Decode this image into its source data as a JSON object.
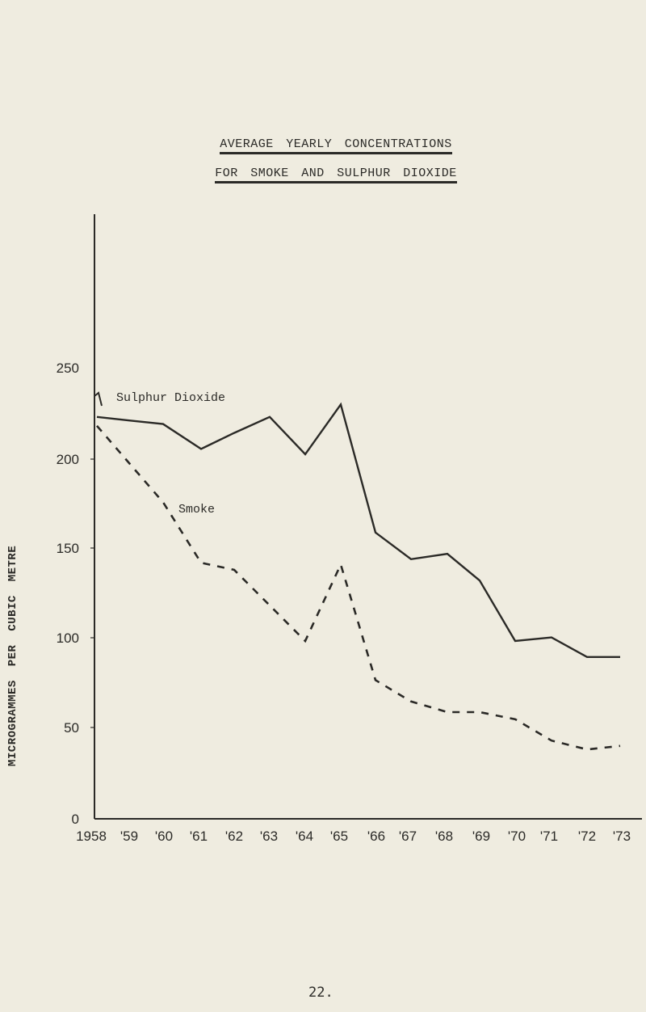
{
  "page": {
    "title_line1": "AVERAGE YEARLY CONCENTRATIONS",
    "title_line2": "FOR SMOKE AND SULPHUR DIOXIDE",
    "y_axis_label": "MICROGRAMMES PER CUBIC METRE",
    "page_number": "22."
  },
  "chart_data": {
    "type": "line",
    "title": "AVERAGE YEARLY CONCENTRATIONS FOR SMOKE AND SULPHUR DIOXIDE",
    "xlabel": "",
    "ylabel": "MICROGRAMMES PER CUBIC METRE",
    "x": [
      "1958",
      "'59",
      "'60",
      "'61",
      "'62",
      "'63",
      "'64",
      "'65",
      "'66",
      "'67",
      "'68",
      "'69",
      "'70",
      "'71",
      "'72",
      "'73"
    ],
    "yticks": [
      0,
      50,
      100,
      150,
      200,
      250
    ],
    "ylim": [
      0,
      250
    ],
    "grid": false,
    "legend": "inline labels",
    "series": [
      {
        "name": "Sulphur Dioxide",
        "style": "solid",
        "values": [
          226,
          224,
          222,
          208,
          217,
          226,
          205,
          233,
          161,
          146,
          149,
          134,
          100,
          102,
          91,
          91
        ]
      },
      {
        "name": "Smoke",
        "style": "dashed",
        "values": [
          221,
          200,
          178,
          144,
          140,
          120,
          100,
          143,
          78,
          66,
          60,
          60,
          56,
          44,
          39,
          41
        ]
      }
    ]
  }
}
